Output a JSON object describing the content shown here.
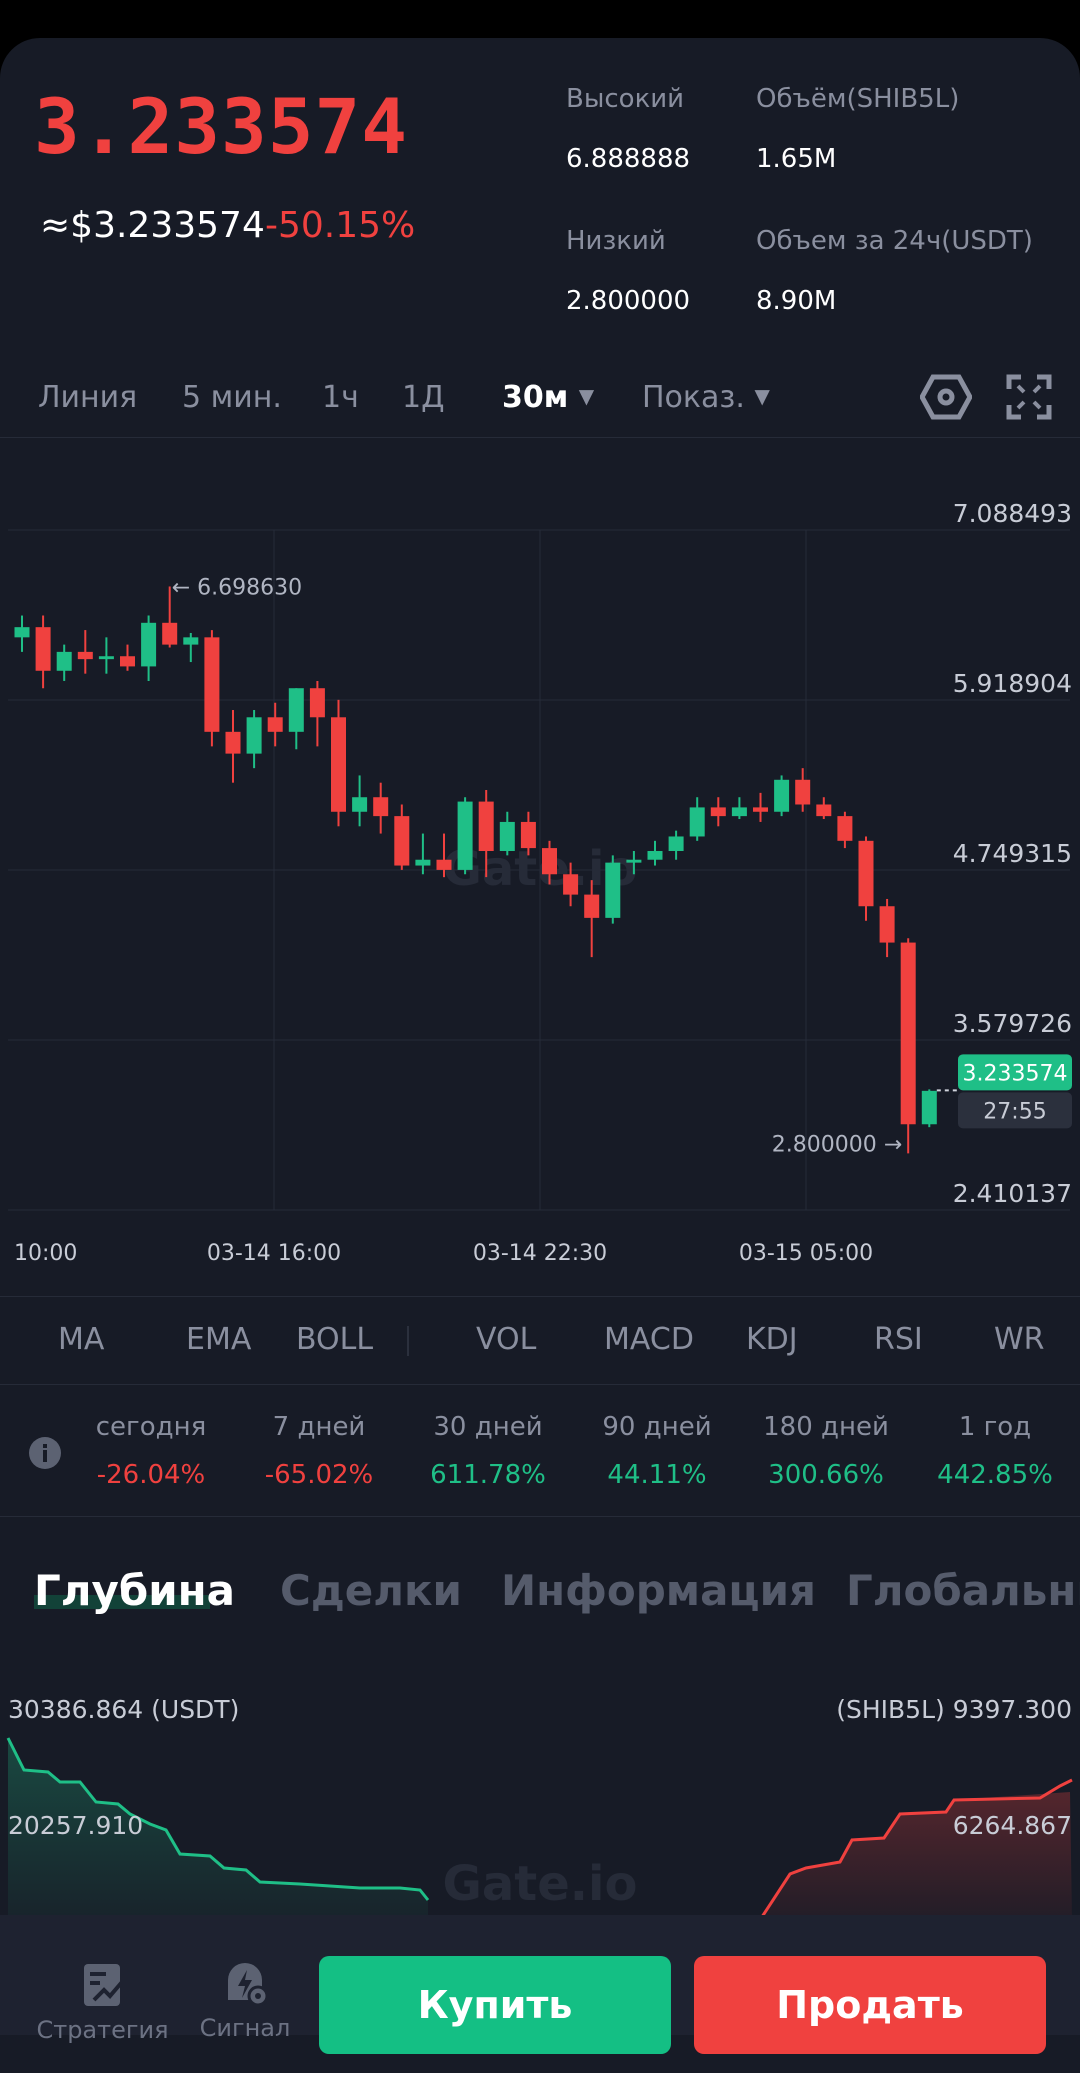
{
  "header": {
    "price": "3.233574",
    "approx_usd": "≈$3.233574",
    "change": "-50.15%",
    "stats": [
      {
        "label": "Высокий",
        "value": "6.888888"
      },
      {
        "label": "Объём(SHIB5L)",
        "value": "1.65M"
      },
      {
        "label": "Низкий",
        "value": "2.800000"
      },
      {
        "label": "Объем за 24ч(USDT)",
        "value": "8.90M"
      }
    ]
  },
  "timeframes": {
    "items": [
      "Линия",
      "5 мин.",
      "1ч",
      "1Д"
    ],
    "active": "30м",
    "indicators": "Показ."
  },
  "chart_data": {
    "type": "candlestick",
    "y_ticks": [
      "7.088493",
      "5.918904",
      "4.749315",
      "3.579726",
      "2.410137"
    ],
    "x_ticks": [
      "10:00",
      "03-14 16:00",
      "03-14 22:30",
      "03-15 05:00"
    ],
    "ylim": [
      2.410137,
      7.088493
    ],
    "max_marker": "6.698630",
    "min_marker": "2.800000",
    "last_price": "3.233574",
    "countdown": "27:55",
    "watermark": "Gate.io",
    "up_color": "#1fbf87",
    "down_color": "#f0413f",
    "candles": [
      [
        6.35,
        6.5,
        6.25,
        6.42
      ],
      [
        6.42,
        6.5,
        6.0,
        6.12
      ],
      [
        6.12,
        6.3,
        6.05,
        6.25
      ],
      [
        6.25,
        6.4,
        6.1,
        6.2
      ],
      [
        6.2,
        6.35,
        6.1,
        6.22
      ],
      [
        6.22,
        6.3,
        6.12,
        6.15
      ],
      [
        6.15,
        6.5,
        6.05,
        6.45
      ],
      [
        6.45,
        6.7,
        6.28,
        6.3
      ],
      [
        6.3,
        6.38,
        6.18,
        6.35
      ],
      [
        6.35,
        6.4,
        5.6,
        5.7
      ],
      [
        5.7,
        5.85,
        5.35,
        5.55
      ],
      [
        5.55,
        5.85,
        5.45,
        5.8
      ],
      [
        5.8,
        5.9,
        5.6,
        5.7
      ],
      [
        5.7,
        6.0,
        5.58,
        6.0
      ],
      [
        6.0,
        6.05,
        5.6,
        5.8
      ],
      [
        5.8,
        5.92,
        5.05,
        5.15
      ],
      [
        5.15,
        5.4,
        5.05,
        5.25
      ],
      [
        5.25,
        5.35,
        5.0,
        5.12
      ],
      [
        5.12,
        5.2,
        4.75,
        4.78
      ],
      [
        4.78,
        5.0,
        4.72,
        4.82
      ],
      [
        4.82,
        5.0,
        4.7,
        4.75
      ],
      [
        4.75,
        5.25,
        4.72,
        5.22
      ],
      [
        5.22,
        5.3,
        4.7,
        4.88
      ],
      [
        4.88,
        5.15,
        4.85,
        5.08
      ],
      [
        5.08,
        5.15,
        4.85,
        4.9
      ],
      [
        4.9,
        4.95,
        4.65,
        4.72
      ],
      [
        4.72,
        4.8,
        4.5,
        4.58
      ],
      [
        4.58,
        4.68,
        4.15,
        4.42
      ],
      [
        4.42,
        4.85,
        4.38,
        4.8
      ],
      [
        4.8,
        4.88,
        4.72,
        4.82
      ],
      [
        4.82,
        4.95,
        4.78,
        4.88
      ],
      [
        4.88,
        5.02,
        4.82,
        4.98
      ],
      [
        4.98,
        5.25,
        4.95,
        5.18
      ],
      [
        5.18,
        5.25,
        5.05,
        5.12
      ],
      [
        5.12,
        5.25,
        5.1,
        5.18
      ],
      [
        5.18,
        5.28,
        5.08,
        5.15
      ],
      [
        5.15,
        5.4,
        5.12,
        5.37
      ],
      [
        5.37,
        5.45,
        5.15,
        5.2
      ],
      [
        5.2,
        5.25,
        5.1,
        5.12
      ],
      [
        5.12,
        5.15,
        4.9,
        4.95
      ],
      [
        4.95,
        4.98,
        4.4,
        4.5
      ],
      [
        4.5,
        4.55,
        4.15,
        4.25
      ],
      [
        4.25,
        4.28,
        2.8,
        3.0
      ],
      [
        3.0,
        3.24,
        2.98,
        3.23
      ]
    ]
  },
  "indicators": [
    "MA",
    "EMA",
    "BOLL",
    "VOL",
    "MACD",
    "KDJ",
    "RSI",
    "WR"
  ],
  "performance": [
    {
      "label": "сегодня",
      "value": "-26.04%",
      "color": "#f0413f"
    },
    {
      "label": "7 дней",
      "value": "-65.02%",
      "color": "#f0413f"
    },
    {
      "label": "30 дней",
      "value": "611.78%",
      "color": "#1fbf87"
    },
    {
      "label": "90 дней",
      "value": "44.11%",
      "color": "#1fbf87"
    },
    {
      "label": "180 дней",
      "value": "300.66%",
      "color": "#1fbf87"
    },
    {
      "label": "1 год",
      "value": "442.85%",
      "color": "#1fbf87"
    }
  ],
  "tabs": [
    "Глубина",
    "Сделки",
    "Информация",
    "Глобальны"
  ],
  "depth": {
    "left_top": "30386.864 (USDT)",
    "left_mid": "20257.910",
    "right_top": "(SHIB5L) 9397.300",
    "right_mid": "6264.867",
    "watermark": "Gate.io"
  },
  "bottom_nav": {
    "strategy": "Стратегия",
    "signal": "Сигнал",
    "buy": "Купить",
    "sell": "Продать"
  }
}
